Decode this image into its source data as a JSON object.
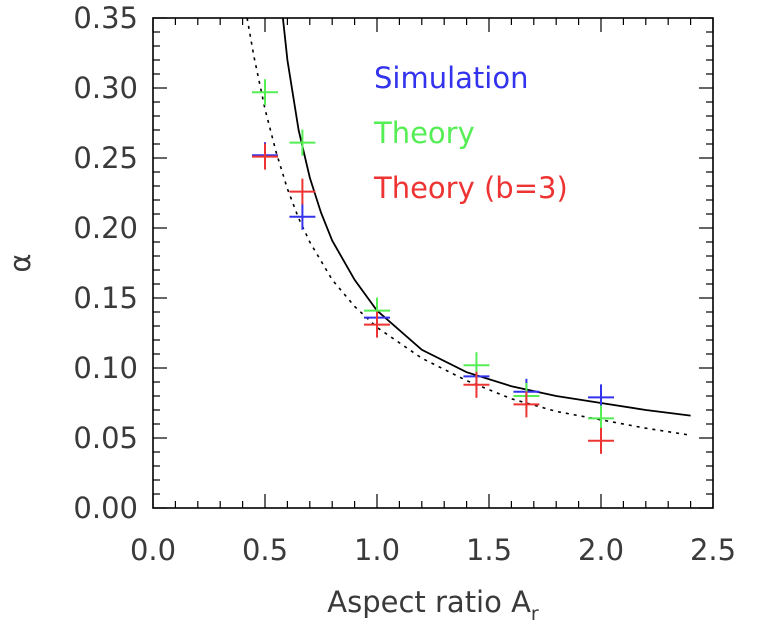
{
  "chart_data": {
    "type": "scatter",
    "xlabel": "Aspect ratio A",
    "xlabel_subscript": "r",
    "ylabel": "α",
    "xlim": [
      0.0,
      2.5
    ],
    "ylim": [
      0.0,
      0.35
    ],
    "x_ticks": [
      "0.0",
      "0.5",
      "1.0",
      "1.5",
      "2.0",
      "2.5"
    ],
    "y_ticks": [
      "0.00",
      "0.05",
      "0.10",
      "0.15",
      "0.20",
      "0.25",
      "0.30",
      "0.35"
    ],
    "legend_position": "top-right",
    "series": [
      {
        "name": "Simulation",
        "color": "#3333ee",
        "marker": "plus",
        "x": [
          0.5,
          0.667,
          1.0,
          1.444,
          1.667,
          2.0
        ],
        "y": [
          0.252,
          0.208,
          0.136,
          0.094,
          0.083,
          0.079
        ]
      },
      {
        "name": "Theory",
        "color": "#55ee55",
        "marker": "plus",
        "x": [
          0.5,
          0.667,
          1.0,
          1.444,
          1.667,
          2.0
        ],
        "y": [
          0.297,
          0.261,
          0.141,
          0.102,
          0.08,
          0.064
        ]
      },
      {
        "name": "Theory (b=3)",
        "color": "#ee3333",
        "marker": "plus",
        "x": [
          0.5,
          0.667,
          1.0,
          1.444,
          1.667,
          2.0
        ],
        "y": [
          0.251,
          0.226,
          0.131,
          0.088,
          0.074,
          0.048
        ]
      }
    ],
    "curves": [
      {
        "style": "solid",
        "color": "#000000",
        "x": [
          0.58,
          0.6,
          0.65,
          0.7,
          0.75,
          0.8,
          0.9,
          1.0,
          1.2,
          1.4,
          1.6,
          1.8,
          2.0,
          2.2,
          2.4
        ],
        "y": [
          0.35,
          0.32,
          0.27,
          0.236,
          0.211,
          0.191,
          0.163,
          0.141,
          0.113,
          0.097,
          0.087,
          0.08,
          0.075,
          0.07,
          0.066
        ]
      },
      {
        "style": "dotted",
        "color": "#000000",
        "x": [
          0.42,
          0.45,
          0.5,
          0.55,
          0.6,
          0.65,
          0.7,
          0.8,
          0.9,
          1.0,
          1.2,
          1.4,
          1.6,
          1.8,
          2.0,
          2.2,
          2.4
        ],
        "y": [
          0.35,
          0.323,
          0.285,
          0.254,
          0.228,
          0.207,
          0.19,
          0.163,
          0.144,
          0.129,
          0.107,
          0.091,
          0.078,
          0.069,
          0.063,
          0.057,
          0.052
        ]
      }
    ]
  }
}
